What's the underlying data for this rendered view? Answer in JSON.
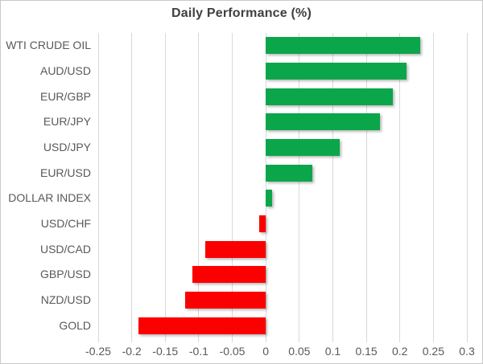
{
  "chart": {
    "title": "Daily Performance (%)"
  },
  "chart_data": {
    "type": "bar",
    "orientation": "horizontal",
    "title": "Daily Performance (%)",
    "categories": [
      "WTI CRUDE OIL",
      "AUD/USD",
      "EUR/GBP",
      "EUR/JPY",
      "USD/JPY",
      "EUR/USD",
      "DOLLAR INDEX",
      "USD/CHF",
      "USD/CAD",
      "GBP/USD",
      "NZD/USD",
      "GOLD"
    ],
    "values": [
      0.23,
      0.21,
      0.19,
      0.17,
      0.11,
      0.07,
      0.01,
      -0.01,
      -0.09,
      -0.11,
      -0.12,
      -0.19
    ],
    "xlabel": "",
    "ylabel": "",
    "xlim": [
      -0.25,
      0.3
    ],
    "x_tick_values": [
      -0.25,
      -0.2,
      -0.15,
      -0.1,
      -0.05,
      0,
      0.05,
      0.1,
      0.15,
      0.2,
      0.25,
      0.3
    ],
    "x_tick_labels": [
      "-0.25",
      "-0.2",
      "-0.15",
      "-0.1",
      "-0.05",
      "0",
      "0.05",
      "0.1",
      "0.15",
      "0.2",
      "0.25",
      "0.3"
    ],
    "grid": true,
    "legend": false,
    "colors": {
      "positive": "#0CA64A",
      "negative": "#FC0000",
      "gridline": "#D9D9D9",
      "axis_label": "#595959",
      "title": "#404040"
    }
  }
}
